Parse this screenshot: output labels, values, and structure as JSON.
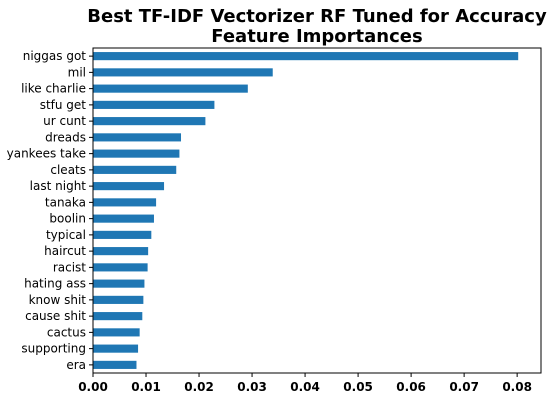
{
  "chart_data": {
    "type": "bar",
    "orientation": "horizontal",
    "title": "Best TF-IDF Vectorizer RF Tuned for Accuracy",
    "subtitle": "Feature Importances",
    "xlabel": "",
    "ylabel": "",
    "xlim": [
      0,
      0.0845
    ],
    "xticks": [
      "0.00",
      "0.01",
      "0.02",
      "0.03",
      "0.04",
      "0.05",
      "0.06",
      "0.07",
      "0.08"
    ],
    "grid": false,
    "color": "#1f77b4",
    "categories": [
      "niggas got",
      "mil",
      "like charlie",
      "stfu get",
      "ur cunt",
      "dreads",
      "yankees take",
      "cleats",
      "last night",
      "tanaka",
      "boolin",
      "typical",
      "haircut",
      "racist",
      "hating ass",
      "know shit",
      "cause shit",
      "cactus",
      "supporting",
      "era"
    ],
    "values": [
      0.0802,
      0.0339,
      0.0292,
      0.0229,
      0.0212,
      0.0166,
      0.0163,
      0.0157,
      0.0134,
      0.0119,
      0.0115,
      0.011,
      0.0104,
      0.0103,
      0.0097,
      0.0095,
      0.0093,
      0.0088,
      0.0085,
      0.0082
    ]
  }
}
